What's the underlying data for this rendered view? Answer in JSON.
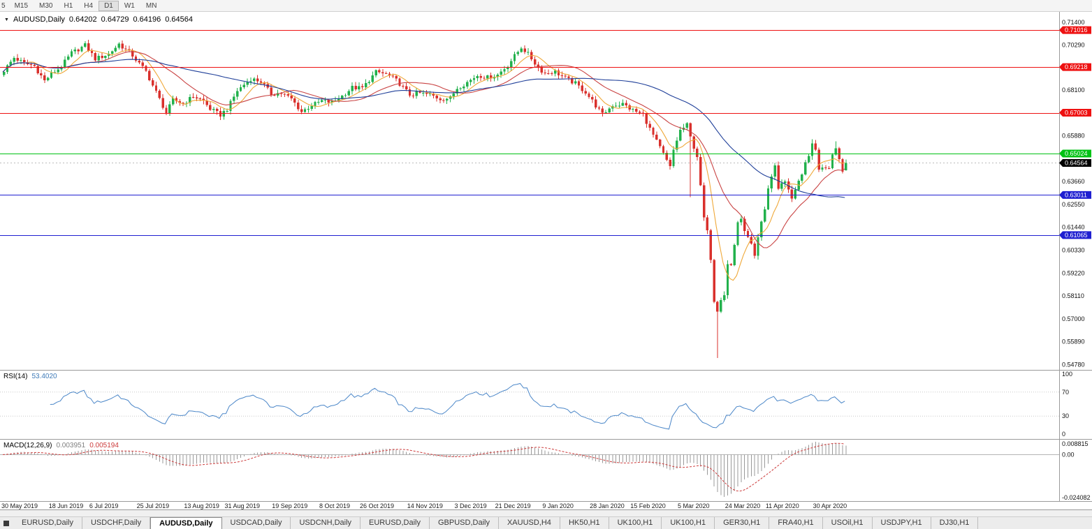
{
  "toolbar": {
    "timeframes": [
      "5",
      "M15",
      "M30",
      "H1",
      "H4",
      "D1",
      "W1",
      "MN"
    ],
    "active": "D1"
  },
  "icons": {
    "chart_menu": "▼",
    "tab_scroll": "square"
  },
  "chart": {
    "title": {
      "symbol": "AUDUSD,Daily",
      "open": "0.64202",
      "high": "0.64729",
      "low": "0.64196",
      "close": "0.64564"
    }
  },
  "price_axis": [
    "0.71400",
    "0.70290",
    "0.68100",
    "0.65880",
    "0.63660",
    "0.62550",
    "0.61440",
    "0.60330",
    "0.59220",
    "0.58110",
    "0.57000",
    "0.55890",
    "0.54780"
  ],
  "levels": [
    {
      "label": "0.71016",
      "color": "#ee1111"
    },
    {
      "label": "0.69218",
      "color": "#ee1111"
    },
    {
      "label": "0.67003",
      "color": "#ee1111"
    },
    {
      "label": "0.65024",
      "color": "#00c214"
    },
    {
      "label": "0.63011",
      "color": "#1f1fd1"
    },
    {
      "label": "0.61065",
      "color": "#1f1fd1"
    }
  ],
  "current_price": {
    "label": "0.64564",
    "color": "#000000"
  },
  "indicators": {
    "rsi": {
      "label": "RSI(14)",
      "value": "53.4020",
      "axis": [
        {
          "label": "100",
          "value": 100
        },
        {
          "label": "70",
          "value": 70
        },
        {
          "label": "30",
          "value": 30
        },
        {
          "label": "0",
          "value": 0
        }
      ],
      "guides": [
        70,
        30
      ]
    },
    "macd": {
      "label": "MACD(12,26,9)",
      "value_main": "0.003951",
      "value_signal": "0.005194",
      "axis_top": "0.008815",
      "axis_zero": "0.00",
      "axis_bottom": "-0.024082"
    }
  },
  "tabs": {
    "items": [
      "EURUSD,Daily",
      "USDCHF,Daily",
      "AUDUSD,Daily",
      "USDCAD,Daily",
      "USDCNH,Daily",
      "EURUSD,Daily",
      "GBPUSD,Daily",
      "XAUUSD,H4",
      "HK50,H1",
      "UK100,H1",
      "UK100,H1",
      "GER30,H1",
      "FRA40,H1",
      "USOil,H1",
      "USDJPY,H1",
      "DJ30,H1"
    ],
    "active_index": 2
  },
  "chart_data": {
    "type": "candlestick",
    "symbol": "AUDUSD",
    "timeframe": "Daily",
    "num_candles": 250,
    "colors": {
      "bull": "#22b14c",
      "bear": "#d9302c",
      "rsi": "#4a86c8",
      "macd_signal": "#cc3a3a"
    },
    "moving_averages": [
      {
        "period": 8,
        "color": "#efa839"
      },
      {
        "period": 20,
        "color": "#c94343"
      },
      {
        "period": 50,
        "color": "#1f3f99"
      }
    ],
    "rsi_period": 14,
    "macd": {
      "fast": 12,
      "slow": 26,
      "signal": 9
    },
    "anchors": [
      [
        0,
        0.6905
      ],
      [
        3,
        0.6968
      ],
      [
        6,
        0.694
      ],
      [
        9,
        0.6927
      ],
      [
        12,
        0.6855
      ],
      [
        14,
        0.6888
      ],
      [
        17,
        0.6925
      ],
      [
        20,
        0.699
      ],
      [
        24,
        0.7028
      ],
      [
        27,
        0.6962
      ],
      [
        31,
        0.6985
      ],
      [
        34,
        0.7035
      ],
      [
        38,
        0.6978
      ],
      [
        42,
        0.69
      ],
      [
        45,
        0.68
      ],
      [
        48,
        0.67
      ],
      [
        50,
        0.6762
      ],
      [
        53,
        0.6745
      ],
      [
        56,
        0.678
      ],
      [
        59,
        0.6758
      ],
      [
        61,
        0.6718
      ],
      [
        64,
        0.669
      ],
      [
        66,
        0.6718
      ],
      [
        69,
        0.6808
      ],
      [
        73,
        0.6865
      ],
      [
        76,
        0.6852
      ],
      [
        79,
        0.6792
      ],
      [
        82,
        0.6795
      ],
      [
        85,
        0.6768
      ],
      [
        88,
        0.6705
      ],
      [
        91,
        0.6737
      ],
      [
        94,
        0.6758
      ],
      [
        97,
        0.675
      ],
      [
        100,
        0.6782
      ],
      [
        103,
        0.6822
      ],
      [
        106,
        0.682
      ],
      [
        110,
        0.6898
      ],
      [
        113,
        0.6888
      ],
      [
        116,
        0.6858
      ],
      [
        120,
        0.6788
      ],
      [
        123,
        0.6795
      ],
      [
        126,
        0.6788
      ],
      [
        129,
        0.6768
      ],
      [
        132,
        0.6772
      ],
      [
        134,
        0.682
      ],
      [
        137,
        0.6848
      ],
      [
        140,
        0.6882
      ],
      [
        143,
        0.6872
      ],
      [
        146,
        0.6885
      ],
      [
        149,
        0.6932
      ],
      [
        153,
        0.7018
      ],
      [
        155,
        0.6985
      ],
      [
        158,
        0.6918
      ],
      [
        160,
        0.6892
      ],
      [
        163,
        0.69
      ],
      [
        166,
        0.6868
      ],
      [
        169,
        0.6842
      ],
      [
        172,
        0.68
      ],
      [
        174,
        0.6758
      ],
      [
        177,
        0.669
      ],
      [
        180,
        0.6738
      ],
      [
        183,
        0.6742
      ],
      [
        186,
        0.6712
      ],
      [
        189,
        0.669
      ],
      [
        191,
        0.6622
      ],
      [
        193,
        0.656
      ],
      [
        195,
        0.65
      ],
      [
        197,
        0.6435
      ],
      [
        198,
        0.652
      ],
      [
        200,
        0.6615
      ],
      [
        202,
        0.664
      ],
      [
        203,
        0.658
      ],
      [
        205,
        0.649
      ],
      [
        207,
        0.619
      ],
      [
        208,
        0.612
      ],
      [
        209,
        0.5995
      ],
      [
        210,
        0.579
      ],
      [
        211,
        0.5745
      ],
      [
        212,
        0.58
      ],
      [
        213,
        0.582
      ],
      [
        214,
        0.5965
      ],
      [
        215,
        0.596
      ],
      [
        216,
        0.606
      ],
      [
        217,
        0.617
      ],
      [
        218,
        0.6175
      ],
      [
        219,
        0.6135
      ],
      [
        220,
        0.609
      ],
      [
        221,
        0.606
      ],
      [
        222,
        0.5995
      ],
      [
        223,
        0.609
      ],
      [
        224,
        0.6165
      ],
      [
        225,
        0.623
      ],
      [
        226,
        0.6335
      ],
      [
        227,
        0.639
      ],
      [
        228,
        0.6445
      ],
      [
        229,
        0.6325
      ],
      [
        230,
        0.6365
      ],
      [
        231,
        0.6365
      ],
      [
        232,
        0.633
      ],
      [
        233,
        0.629
      ],
      [
        234,
        0.632
      ],
      [
        235,
        0.637
      ],
      [
        236,
        0.6395
      ],
      [
        237,
        0.6465
      ],
      [
        238,
        0.6495
      ],
      [
        239,
        0.655
      ],
      [
        240,
        0.651
      ],
      [
        241,
        0.6415
      ],
      [
        242,
        0.643
      ],
      [
        243,
        0.644
      ],
      [
        244,
        0.642
      ],
      [
        245,
        0.6495
      ],
      [
        246,
        0.6535
      ],
      [
        247,
        0.647
      ],
      [
        248,
        0.642
      ],
      [
        249,
        0.64564
      ]
    ],
    "overrides": {
      "203": {
        "low": 0.629
      },
      "211": {
        "low": 0.551
      },
      "239": {
        "high": 0.6572
      },
      "246": {
        "high": 0.6562
      },
      "249": {
        "open": 0.64202,
        "high": 0.64729,
        "low": 0.64196,
        "close": 0.64564
      }
    },
    "date_ticks": [
      {
        "idx": 0,
        "label": "30 May 2019"
      },
      {
        "idx": 14,
        "label": "18 Jun 2019"
      },
      {
        "idx": 26,
        "label": "6 Jul 2019"
      },
      {
        "idx": 40,
        "label": "25 Jul 2019"
      },
      {
        "idx": 54,
        "label": "13 Aug 2019"
      },
      {
        "idx": 66,
        "label": "31 Aug 2019"
      },
      {
        "idx": 80,
        "label": "19 Sep 2019"
      },
      {
        "idx": 94,
        "label": "8 Oct 2019"
      },
      {
        "idx": 106,
        "label": "26 Oct 2019"
      },
      {
        "idx": 120,
        "label": "14 Nov 2019"
      },
      {
        "idx": 134,
        "label": "3 Dec 2019"
      },
      {
        "idx": 146,
        "label": "21 Dec 2019"
      },
      {
        "idx": 160,
        "label": "9 Jan 2020"
      },
      {
        "idx": 174,
        "label": "28 Jan 2020"
      },
      {
        "idx": 186,
        "label": "15 Feb 2020"
      },
      {
        "idx": 200,
        "label": "5 Mar 2020"
      },
      {
        "idx": 214,
        "label": "24 Mar 2020"
      },
      {
        "idx": 226,
        "label": "11 Apr 2020"
      },
      {
        "idx": 240,
        "label": "30 Apr 2020"
      }
    ]
  }
}
